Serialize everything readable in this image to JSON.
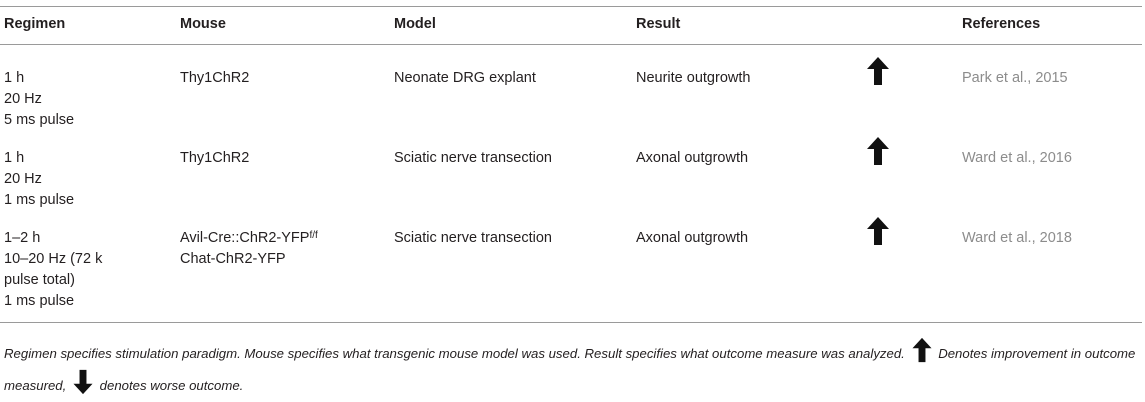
{
  "table": {
    "headers": {
      "regimen": "Regimen",
      "mouse": "Mouse",
      "model": "Model",
      "result": "Result",
      "references": "References"
    },
    "rows": [
      {
        "regimen": [
          "1 h",
          "20 Hz",
          "5 ms pulse"
        ],
        "mouse": [
          "Thy1ChR2"
        ],
        "model": "Neonate DRG explant",
        "result": "Neurite outgrowth",
        "effect_icon": "arrow-up-icon",
        "reference": "Park et al., 2015"
      },
      {
        "regimen": [
          "1 h",
          "20 Hz",
          "1 ms pulse"
        ],
        "mouse": [
          "Thy1ChR2"
        ],
        "model": "Sciatic nerve transection",
        "result": "Axonal outgrowth",
        "effect_icon": "arrow-up-icon",
        "reference": "Ward et al., 2016"
      },
      {
        "regimen": [
          "1–2 h",
          "10–20 Hz (72 k",
          "pulse total)",
          "1 ms pulse"
        ],
        "mouse_line1": "Avil-Cre::ChR2-YFP",
        "mouse_line1_sup": "f/f",
        "mouse_line2": "Chat-ChR2-YFP",
        "model": "Sciatic nerve transection",
        "result": "Axonal outgrowth",
        "effect_icon": "arrow-up-icon",
        "reference": "Ward et al., 2018"
      }
    ]
  },
  "caption": {
    "part1": "Regimen specifies stimulation paradigm. Mouse specifies what transgenic mouse model was used. Result specifies what outcome measure was analyzed.",
    "part2": "Denotes improvement in outcome measured,",
    "part3": "denotes worse outcome.",
    "up_icon": "arrow-up-icon",
    "down_icon": "arrow-down-icon"
  },
  "colors": {
    "text": "#231f20",
    "reference": "#8c8c8c",
    "rule": "#9a9a9a"
  }
}
